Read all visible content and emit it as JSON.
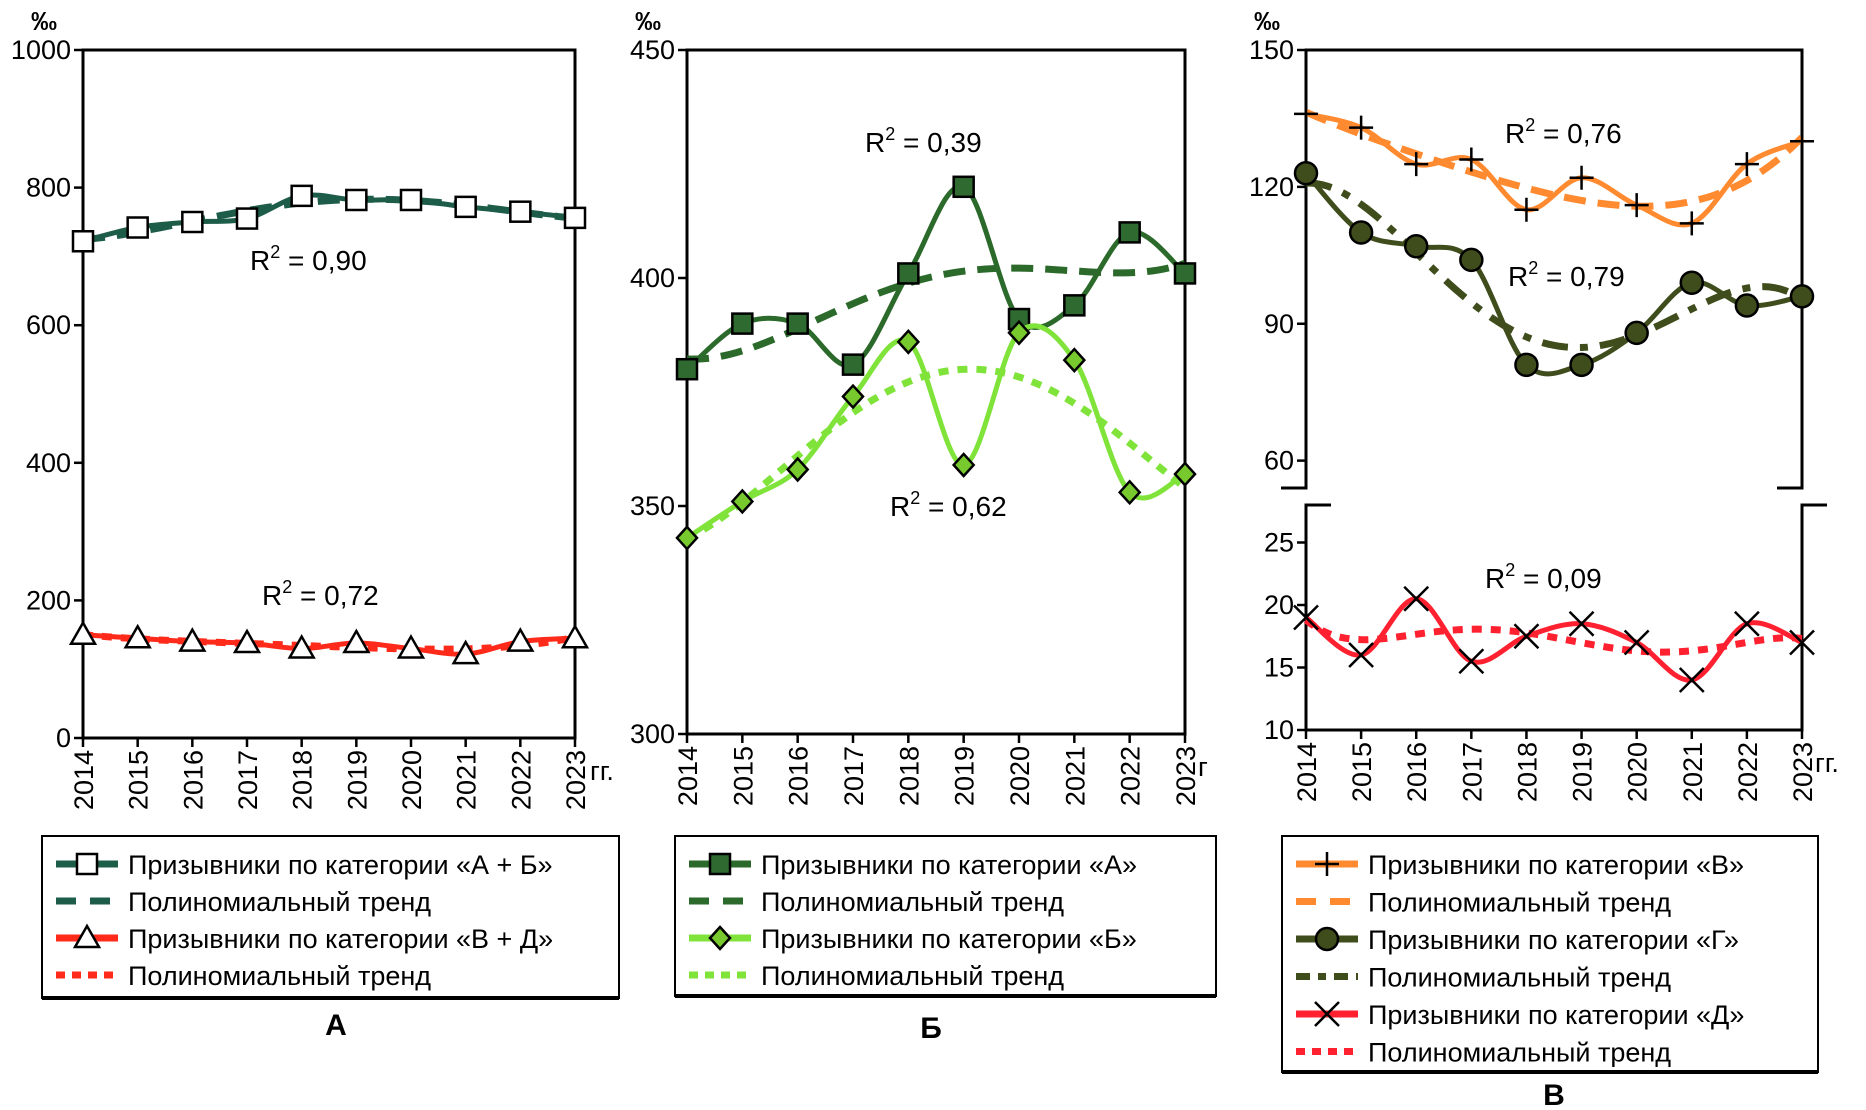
{
  "chart_data": [
    {
      "panel_label": "А",
      "type": "line",
      "ylabel": "‰",
      "x_unit": "гг.",
      "categories": [
        "2014",
        "2015",
        "2016",
        "2017",
        "2018",
        "2019",
        "2020",
        "2021",
        "2022",
        "2023"
      ],
      "ylim": [
        0,
        1000
      ],
      "yticks": [
        0,
        200,
        400,
        600,
        800,
        1000
      ],
      "legend_placement": "bottom",
      "series": [
        {
          "name": "Призывники по категории «А + Б»",
          "marker": "square",
          "color": "#1d5c48",
          "marker_fill": "#ffffff",
          "values": [
            722,
            742,
            750,
            755,
            788,
            782,
            782,
            772,
            765,
            756
          ],
          "trend": {
            "name": "Полиномиальный тренд",
            "r2": "R² = 0,90",
            "r2_base": "R",
            "r2_sup": "2",
            "r2_rest": " = 0,90",
            "dash": "long"
          }
        },
        {
          "name": "Призывники по категории «В + Д»",
          "marker": "triangle",
          "color": "#ff2a1a",
          "marker_fill": "#ffffff",
          "values": [
            150,
            145,
            140,
            138,
            130,
            138,
            130,
            122,
            140,
            145
          ],
          "trend": {
            "name": "Полиномиальный тренд",
            "r2": "R² = 0,72",
            "r2_base": "R",
            "r2_sup": "2",
            "r2_rest": " = 0,72",
            "dash": "short"
          }
        }
      ]
    },
    {
      "panel_label": "Б",
      "type": "line",
      "ylabel": "‰",
      "x_unit": "г",
      "categories": [
        "2014",
        "2015",
        "2016",
        "2017",
        "2018",
        "2019",
        "2020",
        "2021",
        "2022",
        "2023"
      ],
      "ylim": [
        300,
        450
      ],
      "yticks": [
        300,
        350,
        400,
        450
      ],
      "legend_placement": "bottom",
      "series": [
        {
          "name": "Призывники по категории «А»",
          "marker": "square",
          "color": "#2b6a2b",
          "marker_fill": "#2f6b30",
          "values": [
            380,
            390,
            390,
            381,
            401,
            420,
            391,
            394,
            410,
            401
          ],
          "trend": {
            "name": "Полиномиальный тренд",
            "r2": "R² = 0,39",
            "r2_base": "R",
            "r2_sup": "2",
            "r2_rest": " = 0,39",
            "dash": "long"
          }
        },
        {
          "name": "Призывники по категории «Б»",
          "marker": "diamond",
          "color": "#7fe33a",
          "marker_fill": "#77c92e",
          "values": [
            343,
            351,
            358,
            374,
            386,
            359,
            388,
            382,
            353,
            357
          ],
          "trend": {
            "name": "Полиномиальный тренд",
            "r2": "R² = 0,62",
            "r2_base": "R",
            "r2_sup": "2",
            "r2_rest": " = 0,62",
            "dash": "short"
          }
        }
      ]
    },
    {
      "panel_label": "В",
      "type": "line",
      "ylabel": "‰",
      "x_unit": "гг.",
      "categories": [
        "2014",
        "2015",
        "2016",
        "2017",
        "2018",
        "2019",
        "2020",
        "2021",
        "2022",
        "2023"
      ],
      "broken_axis": true,
      "ylim_upper": [
        54,
        150
      ],
      "yticks_upper": [
        60,
        90,
        120,
        150
      ],
      "ylim_lower": [
        10,
        28
      ],
      "yticks_lower": [
        10,
        15,
        20,
        25
      ],
      "legend_placement": "bottom",
      "series": [
        {
          "name": "Призывники по категории «В»",
          "marker": "plus",
          "color": "#ff8a30",
          "marker_fill": "none",
          "axis": "upper",
          "values": [
            136,
            133,
            125,
            126,
            115,
            122,
            116,
            112,
            125,
            130
          ],
          "trend": {
            "name": "Полиномиальный тренд",
            "r2": "R² = 0,76",
            "r2_base": "R",
            "r2_sup": "2",
            "r2_rest": " = 0,76",
            "dash": "long"
          }
        },
        {
          "name": "Призывники по категории «Г»",
          "marker": "circle",
          "color": "#3f4d1c",
          "marker_fill": "#3f4d1c",
          "axis": "upper",
          "values": [
            123,
            110,
            107,
            104,
            81,
            81,
            88,
            99,
            94,
            96
          ],
          "trend": {
            "name": "Полиномиальный тренд",
            "r2": "R² = 0,79",
            "r2_base": "R",
            "r2_sup": "2",
            "r2_rest": " = 0,79",
            "dash": "dashdot"
          }
        },
        {
          "name": "Призывники по категории «Д»",
          "marker": "x",
          "color": "#ff2030",
          "marker_fill": "none",
          "axis": "lower",
          "values": [
            19,
            16,
            20.5,
            15.5,
            17.5,
            18.5,
            17,
            14,
            18.5,
            17
          ],
          "trend": {
            "name": "Полиномиальный тренд",
            "r2": "R² = 0,09",
            "r2_base": "R",
            "r2_sup": "2",
            "r2_rest": " = 0,09",
            "dash": "short"
          }
        }
      ]
    }
  ]
}
